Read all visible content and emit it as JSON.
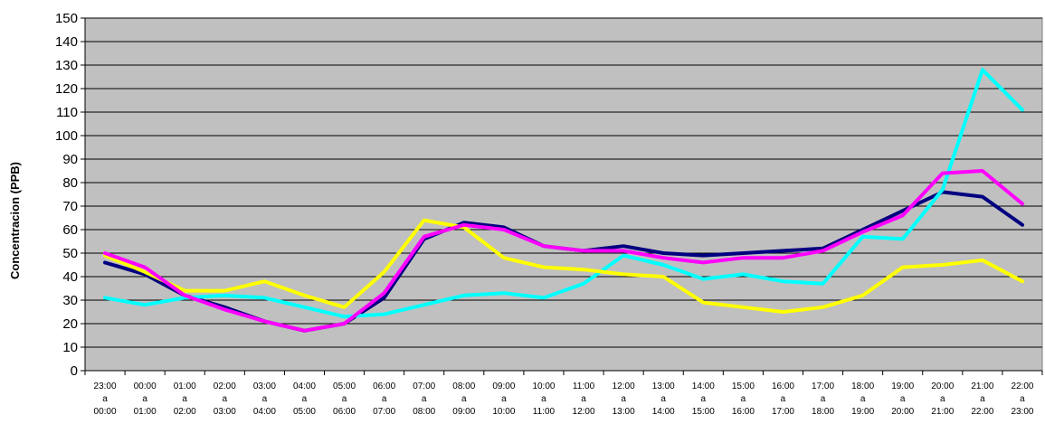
{
  "chart_data": {
    "type": "line",
    "title": "",
    "xlabel": "",
    "ylabel": "Concentracion (PPB)",
    "ylim": [
      0,
      150
    ],
    "ytick_step": 10,
    "yticks": [
      "0",
      "10",
      "20",
      "30",
      "40",
      "50",
      "60",
      "70",
      "80",
      "90",
      "100",
      "110",
      "120",
      "130",
      "140",
      "150"
    ],
    "grid": "horizontal",
    "plot_background": "#c0c0c0",
    "x_connector": "a",
    "x": [
      [
        "23:00",
        "00:00"
      ],
      [
        "00:00",
        "01:00"
      ],
      [
        "01:00",
        "02:00"
      ],
      [
        "02:00",
        "03:00"
      ],
      [
        "03:00",
        "04:00"
      ],
      [
        "04:00",
        "05:00"
      ],
      [
        "05:00",
        "06:00"
      ],
      [
        "06:00",
        "07:00"
      ],
      [
        "07:00",
        "08:00"
      ],
      [
        "08:00",
        "09:00"
      ],
      [
        "09:00",
        "10:00"
      ],
      [
        "10:00",
        "11:00"
      ],
      [
        "11:00",
        "12:00"
      ],
      [
        "12:00",
        "13:00"
      ],
      [
        "13:00",
        "14:00"
      ],
      [
        "14:00",
        "15:00"
      ],
      [
        "15:00",
        "16:00"
      ],
      [
        "16:00",
        "17:00"
      ],
      [
        "17:00",
        "18:00"
      ],
      [
        "18:00",
        "19:00"
      ],
      [
        "19:00",
        "20:00"
      ],
      [
        "20:00",
        "21:00"
      ],
      [
        "21:00",
        "22:00"
      ],
      [
        "22:00",
        "23:00"
      ]
    ],
    "series": [
      {
        "color": "#000080",
        "values": [
          46,
          41,
          32,
          27,
          21,
          17,
          20,
          31,
          56,
          63,
          61,
          53,
          51,
          53,
          50,
          49,
          50,
          51,
          52,
          60,
          68,
          76,
          74,
          62
        ]
      },
      {
        "color": "#00ffff",
        "values": [
          31,
          28,
          31,
          32,
          31,
          27,
          23,
          24,
          28,
          32,
          33,
          31,
          37,
          49,
          45,
          39,
          41,
          38,
          37,
          57,
          56,
          77,
          128,
          111
        ]
      },
      {
        "color": "#ffff00",
        "values": [
          49,
          42,
          34,
          34,
          38,
          32,
          27,
          42,
          64,
          61,
          48,
          44,
          43,
          41,
          40,
          29,
          27,
          25,
          27,
          32,
          44,
          45,
          47,
          38
        ]
      },
      {
        "color": "#ff00ff",
        "values": [
          50,
          44,
          32,
          26,
          21,
          17,
          20,
          33,
          57,
          62,
          60,
          53,
          51,
          51,
          48,
          46,
          48,
          48,
          51,
          59,
          66,
          84,
          85,
          71
        ]
      }
    ]
  }
}
